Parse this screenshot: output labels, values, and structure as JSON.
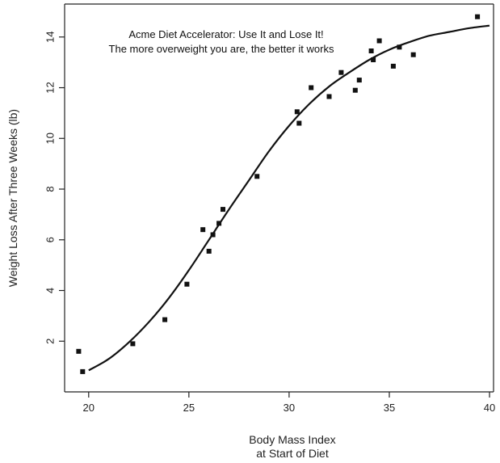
{
  "chart_data": {
    "type": "scatter",
    "title": "",
    "xlabel_lines": [
      "Body Mass Index",
      "at Start of Diet"
    ],
    "ylabel": "Weight Loss After Three Weeks (lb)",
    "xlim": [
      18.8,
      40.2
    ],
    "ylim": [
      0,
      15.3
    ],
    "xticks": [
      20,
      25,
      30,
      35,
      40
    ],
    "yticks": [
      2,
      4,
      6,
      8,
      10,
      12,
      14
    ],
    "grid": false,
    "legend": "none",
    "annotations": [
      "Acme Diet Accelerator: Use It and Lose It!",
      "The more overweight you are, the better it works"
    ],
    "points": [
      {
        "x": 19.5,
        "y": 1.6
      },
      {
        "x": 19.7,
        "y": 0.8
      },
      {
        "x": 22.2,
        "y": 1.9
      },
      {
        "x": 23.8,
        "y": 2.85
      },
      {
        "x": 24.9,
        "y": 4.25
      },
      {
        "x": 25.7,
        "y": 6.4
      },
      {
        "x": 26.0,
        "y": 5.55
      },
      {
        "x": 26.2,
        "y": 6.2
      },
      {
        "x": 26.5,
        "y": 6.65
      },
      {
        "x": 26.7,
        "y": 7.2
      },
      {
        "x": 28.4,
        "y": 8.5
      },
      {
        "x": 30.4,
        "y": 11.05
      },
      {
        "x": 30.5,
        "y": 10.6
      },
      {
        "x": 31.1,
        "y": 12.0
      },
      {
        "x": 32.0,
        "y": 11.65
      },
      {
        "x": 32.6,
        "y": 12.6
      },
      {
        "x": 33.3,
        "y": 11.9
      },
      {
        "x": 33.5,
        "y": 12.3
      },
      {
        "x": 34.1,
        "y": 13.45
      },
      {
        "x": 34.2,
        "y": 13.1
      },
      {
        "x": 34.5,
        "y": 13.85
      },
      {
        "x": 35.2,
        "y": 12.85
      },
      {
        "x": 35.5,
        "y": 13.6
      },
      {
        "x": 36.2,
        "y": 13.3
      },
      {
        "x": 39.4,
        "y": 14.8
      }
    ],
    "fit_curve": {
      "x": [
        20,
        21,
        22,
        23,
        24,
        25,
        26,
        27,
        28,
        29,
        30,
        31,
        32,
        33,
        34,
        35,
        36,
        37,
        38,
        39,
        40
      ],
      "y": [
        0.85,
        1.3,
        1.95,
        2.75,
        3.7,
        4.8,
        6.0,
        7.2,
        8.35,
        9.5,
        10.5,
        11.35,
        12.05,
        12.6,
        13.1,
        13.5,
        13.8,
        14.05,
        14.2,
        14.35,
        14.45
      ]
    }
  },
  "colors": {
    "background": "#ffffff",
    "ink": "#111111",
    "axis": "#222222"
  }
}
